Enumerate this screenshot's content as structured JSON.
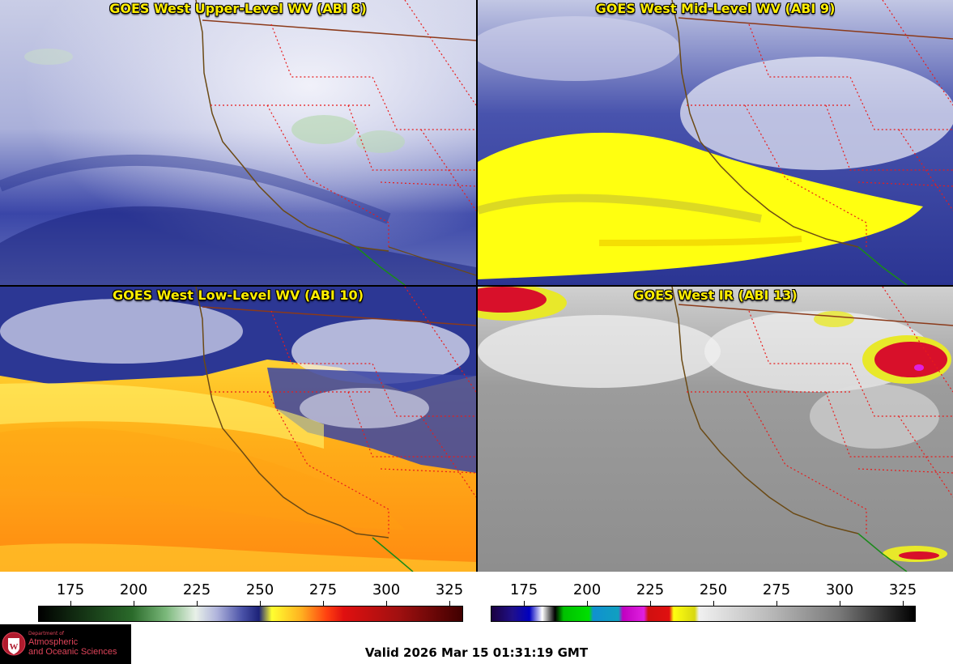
{
  "panels": [
    {
      "title": "GOES West Upper-Level WV (ABI 8)"
    },
    {
      "title": "GOES West Mid-Level WV (ABI 9)"
    },
    {
      "title": "GOES West Low-Level WV (ABI 10)"
    },
    {
      "title": "GOES West IR (ABI 13)"
    }
  ],
  "colorbars": {
    "wv": {
      "ticks": [
        "175",
        "200",
        "225",
        "250",
        "275",
        "300",
        "325"
      ],
      "icon": "water-vapor-colorbar"
    },
    "ir": {
      "ticks": [
        "175",
        "200",
        "225",
        "250",
        "275",
        "300",
        "325"
      ],
      "icon": "infrared-colorbar"
    }
  },
  "logo": {
    "dept": "Department of",
    "line1": "Atmospheric",
    "line2": "and Oceanic Sciences",
    "icon": "uw-crest-icon"
  },
  "valid_time": "Valid 2026 Mar 15 01:31:19 GMT"
}
